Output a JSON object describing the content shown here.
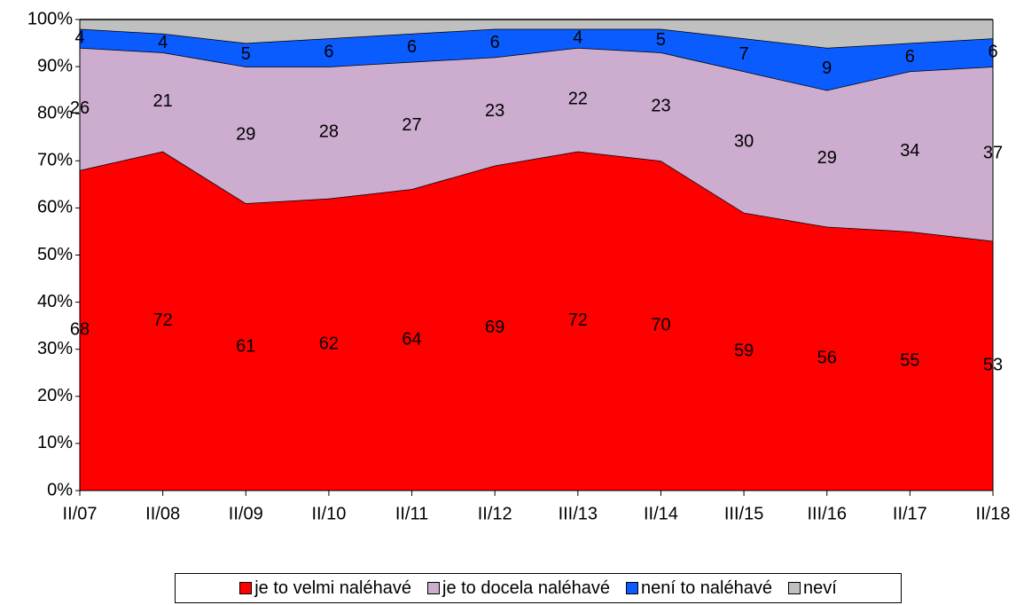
{
  "chart_data": {
    "type": "stacked_area_percent",
    "categories": [
      "II/07",
      "II/08",
      "II/09",
      "II/10",
      "II/11",
      "II/12",
      "III/13",
      "II/14",
      "III/15",
      "III/16",
      "II/17",
      "II/18"
    ],
    "series": [
      {
        "name": "je to velmi naléhavé",
        "color": "#ff0000",
        "values": [
          68,
          72,
          61,
          62,
          64,
          69,
          72,
          70,
          59,
          56,
          55,
          53
        ],
        "data_labels": true
      },
      {
        "name": "je to docela naléhavé",
        "color": "#ccadd0",
        "values": [
          26,
          21,
          29,
          28,
          27,
          23,
          22,
          23,
          30,
          29,
          34,
          37
        ],
        "data_labels": true
      },
      {
        "name": "není to naléhavé",
        "color": "#0a5cff",
        "values": [
          4,
          4,
          5,
          6,
          6,
          6,
          4,
          5,
          7,
          9,
          6,
          6
        ],
        "data_labels": true
      },
      {
        "name": "neví",
        "color": "#c0c0c0",
        "values": [
          2,
          3,
          5,
          4,
          3,
          2,
          2,
          2,
          4,
          6,
          5,
          4
        ],
        "data_labels": false
      }
    ],
    "ylim": [
      0,
      100
    ],
    "yticks": [
      {
        "value": 0,
        "label": "0%"
      },
      {
        "value": 10,
        "label": "10%"
      },
      {
        "value": 20,
        "label": "20%"
      },
      {
        "value": 30,
        "label": "30%"
      },
      {
        "value": 40,
        "label": "40%"
      },
      {
        "value": 50,
        "label": "50%"
      },
      {
        "value": 60,
        "label": "60%"
      },
      {
        "value": 70,
        "label": "70%"
      },
      {
        "value": 80,
        "label": "80%"
      },
      {
        "value": 90,
        "label": "90%"
      },
      {
        "value": 100,
        "label": "100%"
      }
    ]
  }
}
